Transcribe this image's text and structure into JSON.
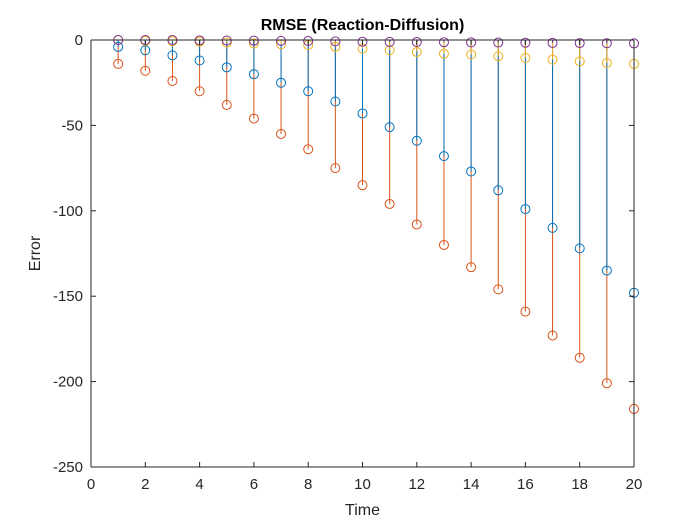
{
  "chart_data": {
    "type": "stem",
    "title": "RMSE (Reaction-Diffusion)",
    "xlabel": "Time",
    "ylabel": "Error",
    "xlim": [
      0,
      20
    ],
    "ylim": [
      -250,
      0
    ],
    "xticks": [
      0,
      2,
      4,
      6,
      8,
      10,
      12,
      14,
      16,
      18,
      20
    ],
    "yticks": [
      0,
      -50,
      -100,
      -150,
      -200,
      -250
    ],
    "grid": false,
    "x": [
      1,
      2,
      3,
      4,
      5,
      6,
      7,
      8,
      9,
      10,
      11,
      12,
      13,
      14,
      15,
      16,
      17,
      18,
      19,
      20
    ],
    "series": [
      {
        "color": "#D95319",
        "values": [
          -14,
          -18,
          -24,
          -30,
          -38,
          -46,
          -55,
          -64,
          -75,
          -85,
          -96,
          -108,
          -120,
          -133,
          -146,
          -159,
          -173,
          -186,
          -201,
          -216
        ]
      },
      {
        "color": "#0072BD",
        "values": [
          -4,
          -6,
          -9,
          -12,
          -16,
          -20,
          -25,
          -30,
          -36,
          -43,
          -51,
          -59,
          -68,
          -77,
          -88,
          -99,
          -110,
          -122,
          -135,
          -148
        ]
      },
      {
        "color": "#EDB120",
        "values": [
          0,
          -0.5,
          -0.7,
          -1,
          -1.5,
          -2,
          -2.5,
          -3,
          -4,
          -5,
          -6,
          -7,
          -8,
          -8.5,
          -9.5,
          -10.5,
          -11.5,
          -12.5,
          -13.5,
          -14
        ]
      },
      {
        "color": "#7E2F8E",
        "values": [
          0,
          0,
          0,
          -0.2,
          -0.3,
          -0.4,
          -0.5,
          -0.6,
          -0.8,
          -1,
          -1.1,
          -1.2,
          -1.3,
          -1.4,
          -1.5,
          -1.6,
          -1.7,
          -1.8,
          -1.9,
          -2
        ]
      }
    ]
  }
}
